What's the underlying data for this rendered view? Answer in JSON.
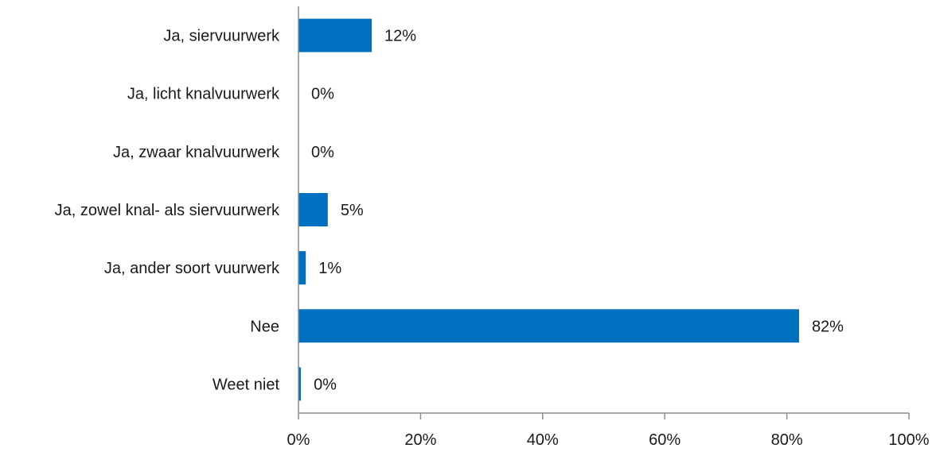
{
  "chart_data": {
    "type": "bar",
    "orientation": "horizontal",
    "title": "",
    "xlabel": "",
    "ylabel": "",
    "categories": [
      "Ja, siervuurwerk",
      "Ja, licht knalvuurwerk",
      "Ja, zwaar knalvuurwerk",
      "Ja, zowel knal- als siervuurwerk",
      "Ja, ander soort vuurwerk",
      "Nee",
      "Weet niet"
    ],
    "values": [
      12,
      0,
      0,
      4.8,
      1.2,
      82,
      0.4
    ],
    "data_labels": [
      "12%",
      "0%",
      "0%",
      "5%",
      "1%",
      "82%",
      "0%"
    ],
    "xlim": [
      0,
      100
    ],
    "x_ticks": [
      0,
      20,
      40,
      60,
      80,
      100
    ],
    "x_tick_labels": [
      "0%",
      "20%",
      "40%",
      "60%",
      "80%",
      "100%"
    ],
    "bar_color": "#0070C0",
    "grid": false,
    "legend": "none"
  }
}
